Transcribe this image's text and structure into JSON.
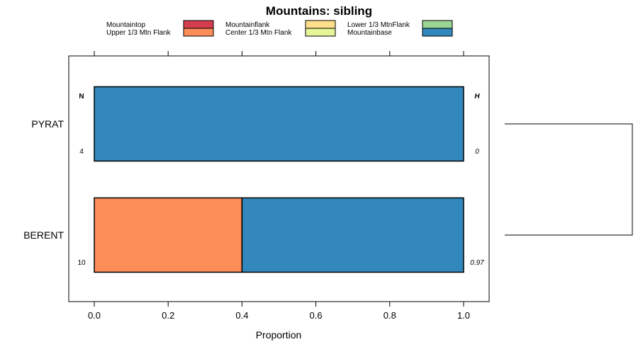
{
  "chart_data": {
    "type": "bar",
    "orientation": "horizontal",
    "stacked": true,
    "title": "Mountains: sibling",
    "xlabel": "Proportion",
    "ylabel": "",
    "xlim": [
      -0.07,
      1.07
    ],
    "xticks": [
      "0.0",
      "0.2",
      "0.4",
      "0.6",
      "0.8",
      "1.0"
    ],
    "categories": [
      "PYRAT",
      "BERENT"
    ],
    "n_header": "N",
    "h_header": "H",
    "n_values": [
      "4",
      "10"
    ],
    "h_values": [
      "0",
      "0.97"
    ],
    "series": [
      {
        "name": "Mountaintop",
        "color": "#d53e4f",
        "values": [
          0,
          0
        ]
      },
      {
        "name": "Upper 1/3 Mtn Flank",
        "color": "#fc8d59",
        "values": [
          0,
          0.4
        ]
      },
      {
        "name": "Mountainflank",
        "color": "#fee08b",
        "values": [
          0,
          0
        ]
      },
      {
        "name": "Center 1/3 Mtn Flank",
        "color": "#e6f598",
        "values": [
          0,
          0
        ]
      },
      {
        "name": "Lower 1/3 MtnFlank",
        "color": "#99d594",
        "values": [
          0,
          0
        ]
      },
      {
        "name": "Mountainbase",
        "color": "#3288bd",
        "values": [
          1.0,
          0.6
        ]
      }
    ],
    "dendrogram": true
  }
}
